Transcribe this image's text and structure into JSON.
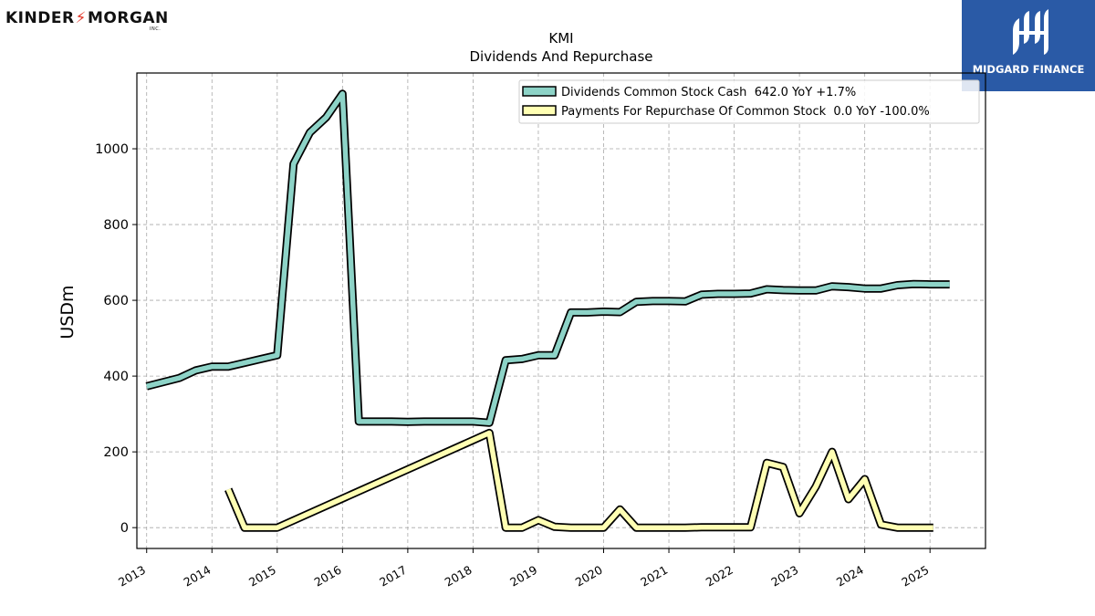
{
  "branding": {
    "left_logo_part1": "KINDER",
    "left_logo_part2": "MORGAN",
    "left_logo_inc": "INC.",
    "right_logo_text": "MIDGARD FINANCE"
  },
  "chart_data": {
    "type": "line",
    "title": "KMI",
    "subtitle": "Dividends And Repurchase",
    "xlabel": "",
    "ylabel": "USDm",
    "xlim": [
      2012.85,
      2025.85
    ],
    "ylim": [
      -55,
      1200
    ],
    "x_ticks": [
      2013,
      2014,
      2015,
      2016,
      2017,
      2018,
      2019,
      2020,
      2021,
      2022,
      2023,
      2024,
      2025
    ],
    "y_ticks": [
      0,
      200,
      400,
      600,
      800,
      1000
    ],
    "grid": true,
    "legend_position": "top-right",
    "series": [
      {
        "name": "Dividends Common Stock Cash  642.0 YoY +1.7%",
        "color": "#8dd3c7",
        "x": [
          2013.0,
          2013.5,
          2013.75,
          2014.0,
          2014.25,
          2014.5,
          2014.75,
          2015.0,
          2015.25,
          2015.5,
          2015.75,
          2016.0,
          2016.25,
          2016.5,
          2016.75,
          2017.0,
          2017.25,
          2017.5,
          2017.75,
          2018.0,
          2018.25,
          2018.5,
          2018.75,
          2019.0,
          2019.25,
          2019.5,
          2019.75,
          2020.0,
          2020.25,
          2020.5,
          2020.75,
          2021.0,
          2021.25,
          2021.5,
          2021.75,
          2022.0,
          2022.25,
          2022.5,
          2022.75,
          2023.0,
          2023.25,
          2023.5,
          2023.75,
          2024.0,
          2024.25,
          2024.5,
          2024.75,
          2025.0,
          2025.3
        ],
        "values": [
          373,
          395,
          415,
          425,
          425,
          435,
          445,
          455,
          960,
          1043,
          1083,
          1145,
          280,
          280,
          280,
          279,
          280,
          280,
          280,
          280,
          277,
          442,
          445,
          455,
          455,
          568,
          568,
          570,
          569,
          596,
          598,
          598,
          597,
          615,
          617,
          617,
          618,
          629,
          627,
          626,
          626,
          637,
          635,
          631,
          631,
          640,
          643,
          642,
          642
        ]
      },
      {
        "name": "Payments For Repurchase Of Common Stock  0.0 YoY -100.0%",
        "color": "#ffffb3",
        "x": [
          2014.25,
          2014.5,
          2014.75,
          2015.0,
          2018.25,
          2018.5,
          2018.75,
          2019.0,
          2019.25,
          2019.5,
          2019.75,
          2020.0,
          2020.25,
          2020.5,
          2020.75,
          2021.0,
          2021.25,
          2021.5,
          2021.75,
          2022.0,
          2022.25,
          2022.5,
          2022.75,
          2023.0,
          2023.25,
          2023.5,
          2023.75,
          2024.0,
          2024.25,
          2024.5,
          2024.75,
          2025.05
        ],
        "values": [
          101,
          0,
          0,
          0,
          250,
          0,
          0,
          20,
          2,
          0,
          0,
          0,
          48,
          0,
          0,
          0,
          0,
          1,
          1,
          1,
          1,
          171,
          160,
          38,
          108,
          200,
          75,
          128,
          8,
          0,
          0,
          0
        ]
      }
    ]
  }
}
